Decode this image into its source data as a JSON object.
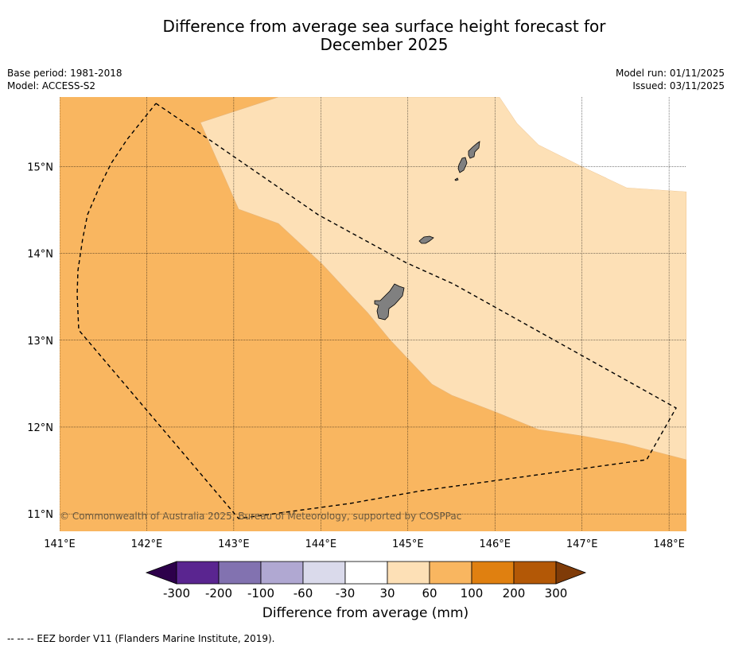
{
  "title_line1": "Difference from average sea surface height forecast for",
  "title_line2": "December 2025",
  "base_period": "Base period: 1981-2018",
  "model": "Model: ACCESS-S2",
  "model_run": "Model run: 01/11/2025",
  "issued": "Issued: 03/11/2025",
  "copyright": "© Commonwealth of Australia 2025, Bureau of Meteorology, supported by COSPPac",
  "footnote": "--  --  -- EEZ border V11 (Flanders Marine Institute, 2019).",
  "chart_data": {
    "type": "map",
    "lat_range": [
      10.8,
      15.8
    ],
    "lon_range": [
      141.0,
      148.2
    ],
    "lat_ticks": [
      {
        "value": 11,
        "label": "11°N"
      },
      {
        "value": 12,
        "label": "12°N"
      },
      {
        "value": 13,
        "label": "13°N"
      },
      {
        "value": 14,
        "label": "14°N"
      },
      {
        "value": 15,
        "label": "15°N"
      }
    ],
    "lon_ticks": [
      {
        "value": 141,
        "label": "141°E"
      },
      {
        "value": 142,
        "label": "142°E"
      },
      {
        "value": 143,
        "label": "143°E"
      },
      {
        "value": 144,
        "label": "144°E"
      },
      {
        "value": 145,
        "label": "145°E"
      },
      {
        "value": 146,
        "label": "146°E"
      },
      {
        "value": 147,
        "label": "147°E"
      },
      {
        "value": 148,
        "label": "148°E"
      }
    ],
    "colorbar": {
      "title": "Difference from average (mm)",
      "bin_colors": [
        "#5a2590",
        "#8272b0",
        "#b0a8d2",
        "#dadaeb",
        "#ffffff",
        "#fde0b6",
        "#f9b660",
        "#e08010",
        "#b35806"
      ],
      "under_color": "#2d004b",
      "over_color": "#7f3b08",
      "tick_labels": [
        "-300",
        "-200",
        "-100",
        "-60",
        "-30",
        "30",
        "60",
        "100",
        "200",
        "300"
      ]
    },
    "regions": [
      {
        "name": "60-100 mm",
        "color": "#f9b660",
        "extent": "western and southern part of map"
      },
      {
        "name": "30-60 mm",
        "color": "#fde0b6",
        "extent": "north-east band around the Mariana Islands"
      },
      {
        "name": "below 30 mm",
        "color": "#ffffff",
        "extent": "far north-east corner"
      }
    ],
    "land_color": "#808080",
    "eez_border": "dashed black line"
  }
}
